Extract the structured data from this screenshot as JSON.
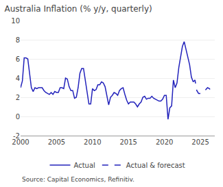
{
  "chart_data": {
    "type": "line",
    "title": "Australia Inflation (% y/y, quarterly)",
    "annotations": [
      "Source: Capital Economics, Refinitiv."
    ],
    "xlim": [
      2000,
      2027
    ],
    "xticks": [
      2000,
      2005,
      2010,
      2015,
      2020,
      2025
    ],
    "ylim": [
      -2,
      10
    ],
    "yticks": [
      -2,
      0,
      2,
      4,
      6,
      8,
      10
    ],
    "grid": true,
    "legend": "bottom",
    "series": [
      {
        "name": "Actual",
        "color": "#2222bb",
        "line_style": "solid",
        "x": [
          2000.0,
          2000.25,
          2000.5,
          2000.75,
          2001.0,
          2001.25,
          2001.5,
          2001.75,
          2002.0,
          2002.25,
          2002.5,
          2002.75,
          2003.0,
          2003.25,
          2003.5,
          2003.75,
          2004.0,
          2004.25,
          2004.5,
          2004.75,
          2005.0,
          2005.25,
          2005.5,
          2005.75,
          2006.0,
          2006.25,
          2006.5,
          2006.75,
          2007.0,
          2007.25,
          2007.5,
          2007.75,
          2008.0,
          2008.25,
          2008.5,
          2008.75,
          2009.0,
          2009.25,
          2009.5,
          2009.75,
          2010.0,
          2010.25,
          2010.5,
          2010.75,
          2011.0,
          2011.25,
          2011.5,
          2011.75,
          2012.0,
          2012.25,
          2012.5,
          2012.75,
          2013.0,
          2013.25,
          2013.5,
          2013.75,
          2014.0,
          2014.25,
          2014.5,
          2014.75,
          2015.0,
          2015.25,
          2015.5,
          2015.75,
          2016.0,
          2016.25,
          2016.5,
          2016.75,
          2017.0,
          2017.25,
          2017.5,
          2017.75,
          2018.0,
          2018.25,
          2018.5,
          2018.75,
          2019.0,
          2019.25,
          2019.5,
          2019.75,
          2020.0,
          2020.25,
          2020.5,
          2020.75,
          2021.0,
          2021.25,
          2021.5,
          2021.75,
          2022.0,
          2022.25,
          2022.5,
          2022.75,
          2023.0,
          2023.25,
          2023.5,
          2023.75,
          2024.0
        ],
        "values": [
          3.0,
          3.7,
          6.1,
          6.1,
          6.0,
          4.4,
          3.0,
          2.6,
          3.0,
          2.9,
          3.0,
          3.0,
          3.0,
          2.7,
          2.5,
          2.4,
          2.3,
          2.5,
          2.3,
          2.6,
          2.5,
          2.5,
          3.0,
          3.0,
          2.9,
          4.0,
          3.9,
          3.1,
          2.7,
          2.7,
          1.9,
          2.0,
          3.0,
          4.5,
          5.0,
          5.0,
          3.7,
          2.5,
          1.3,
          1.3,
          2.9,
          2.7,
          2.8,
          3.3,
          3.3,
          3.6,
          3.5,
          3.1,
          2.2,
          1.2,
          2.0,
          2.2,
          2.5,
          2.4,
          2.2,
          2.7,
          2.9,
          3.0,
          2.3,
          1.7,
          1.3,
          1.5,
          1.5,
          1.5,
          1.3,
          1.0,
          1.3,
          1.5,
          2.0,
          2.1,
          1.8,
          1.9,
          1.9,
          2.1,
          1.9,
          1.8,
          1.7,
          1.6,
          1.6,
          1.8,
          2.2,
          2.2,
          -0.3,
          0.9,
          1.1,
          3.8,
          3.0,
          3.5,
          5.1,
          6.1,
          7.3,
          7.8,
          7.0,
          6.0,
          5.4,
          4.1,
          3.6
        ]
      },
      {
        "name": "Actual & forecast",
        "color": "#2222bb",
        "line_style": "dashed",
        "x": [
          2024.0,
          2024.25,
          2024.5,
          2024.75,
          2025.0,
          2025.25,
          2025.5,
          2025.75,
          2026.0,
          2026.25,
          2026.5,
          2026.75,
          2027.0
        ],
        "values": [
          3.6,
          3.8,
          2.7,
          2.4,
          2.4,
          2.6,
          2.7,
          2.8,
          3.0,
          2.9,
          2.7,
          2.6,
          2.5
        ]
      }
    ]
  }
}
